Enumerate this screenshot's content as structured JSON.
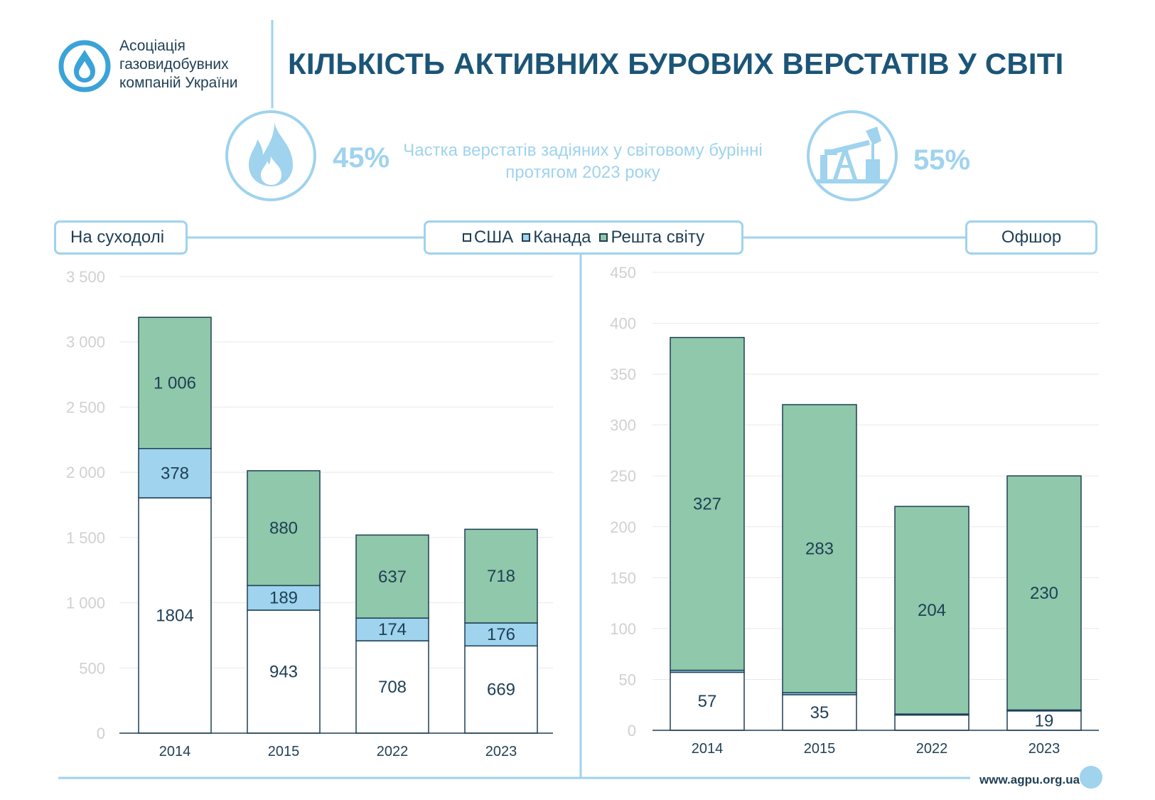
{
  "header": {
    "logo_lines": [
      "Асоціація",
      "газовидобувних",
      "компаній України"
    ],
    "title": "КІЛЬКІСТЬ АКТИВНИХ БУРОВИХ ВЕРСТАТІВ У СВІТІ"
  },
  "share": {
    "onshore_pct": "45%",
    "offshore_pct": "55%",
    "description": "Частка верстатів задіяних у світовому бурінні протягом 2023 року"
  },
  "labels": {
    "onshore": "На суходолі",
    "offshore": "Офшор"
  },
  "legend": [
    {
      "name": "США",
      "color": "#ffffff"
    },
    {
      "name": "Канада",
      "color": "#9fd3ee"
    },
    {
      "name": "Решта світу",
      "color": "#8fc8aa"
    }
  ],
  "footer": {
    "url": "www.agpu.org.ua"
  },
  "icons": {
    "onshore": "flame-icon",
    "offshore": "oil-pump-icon",
    "logo": "drop-logo-icon"
  },
  "colors": {
    "accent": "#9fd3ee",
    "dark": "#1f3f55",
    "title": "#1b5577",
    "green": "#8fc8aa",
    "blue": "#9fd3ee"
  },
  "chart_data": [
    {
      "type": "bar",
      "stacked": true,
      "panel": "onshore",
      "categories": [
        "2014",
        "2015",
        "2022",
        "2023"
      ],
      "ylim": [
        0,
        3500
      ],
      "yticks": [
        0,
        500,
        1000,
        1500,
        2000,
        2500,
        3000,
        3500
      ],
      "ytick_labels": [
        "0",
        "500",
        "1 000",
        "1 500",
        "2 000",
        "2 500",
        "3 000",
        "3 500"
      ],
      "series": [
        {
          "name": "США",
          "values": [
            1804,
            943,
            708,
            669
          ],
          "labels": [
            "1804",
            "943",
            "708",
            "669"
          ]
        },
        {
          "name": "Канада",
          "values": [
            378,
            189,
            174,
            176
          ],
          "labels": [
            "378",
            "189",
            "174",
            "176"
          ]
        },
        {
          "name": "Решта світу",
          "values": [
            1006,
            880,
            637,
            718
          ],
          "labels": [
            "1 006",
            "880",
            "637",
            "718"
          ]
        }
      ],
      "grid": true
    },
    {
      "type": "bar",
      "stacked": true,
      "panel": "offshore",
      "categories": [
        "2014",
        "2015",
        "2022",
        "2023"
      ],
      "ylim": [
        0,
        450
      ],
      "yticks": [
        0,
        50,
        100,
        150,
        200,
        250,
        300,
        350,
        400,
        450
      ],
      "ytick_labels": [
        "0",
        "50",
        "100",
        "150",
        "200",
        "250",
        "300",
        "350",
        "400",
        "450"
      ],
      "series": [
        {
          "name": "США",
          "values": [
            57,
            35,
            15,
            19
          ],
          "labels": [
            "57",
            "35",
            "15",
            "19"
          ]
        },
        {
          "name": "Канада",
          "values": [
            2,
            2,
            1,
            1
          ],
          "labels": [
            "2",
            "2",
            "1",
            "1"
          ]
        },
        {
          "name": "Решта світу",
          "values": [
            327,
            283,
            204,
            230
          ],
          "labels": [
            "327",
            "283",
            "204",
            "230"
          ]
        }
      ],
      "grid": true
    }
  ]
}
